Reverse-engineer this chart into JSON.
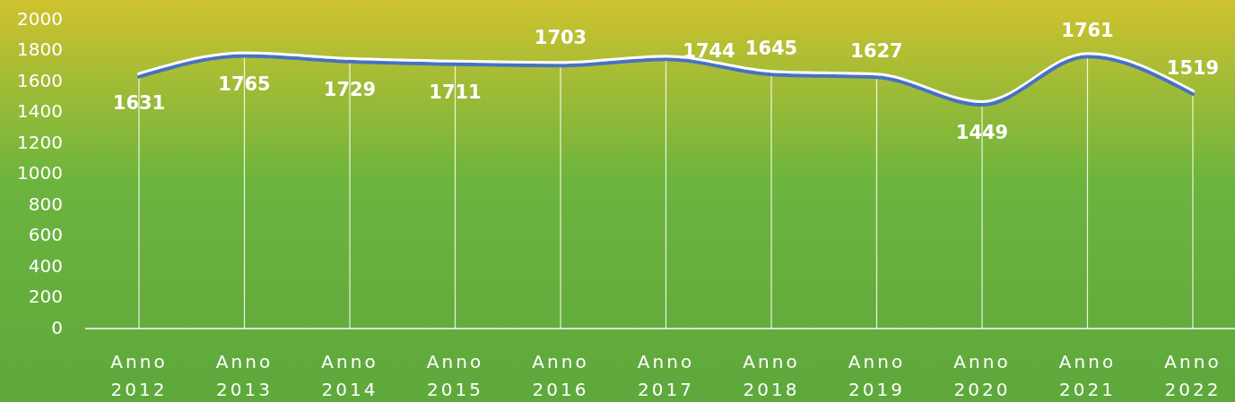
{
  "chart_data": {
    "type": "line",
    "categories": [
      "Anno 2012",
      "Anno 2013",
      "Anno 2014",
      "Anno 2015",
      "Anno 2016",
      "Anno 2017",
      "Anno 2018",
      "Anno 2019",
      "Anno 2020",
      "Anno 2021",
      "Anno 2022"
    ],
    "series": [
      {
        "color": "#4472c4",
        "values": [
          1631,
          1765,
          1729,
          1711,
          1703,
          1744,
          1645,
          1627,
          1449,
          1761,
          1519
        ]
      }
    ],
    "ylim": [
      0,
      2000
    ],
    "yticks": [
      0,
      200,
      400,
      600,
      800,
      1000,
      1200,
      1400,
      1600,
      1800,
      2000
    ],
    "data_labels": true,
    "grid": "x"
  }
}
